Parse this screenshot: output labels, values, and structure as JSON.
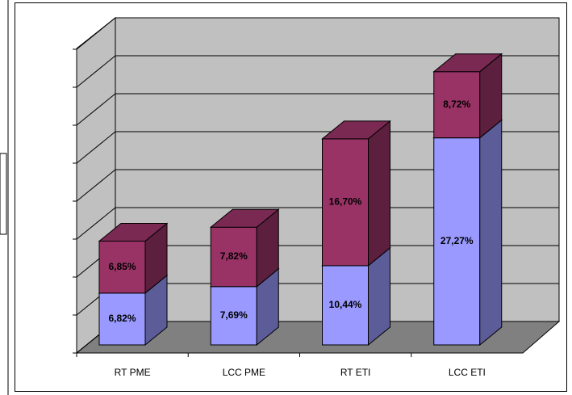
{
  "chart_data": {
    "type": "bar3d_stacked",
    "categories": [
      "RT PME",
      "LCC PME",
      "RT ETI",
      "LCC ETI"
    ],
    "series": [
      {
        "color": "#9999ff",
        "values": [
          6.82,
          7.69,
          10.44,
          27.27
        ],
        "value_labels": [
          "6,82%",
          "7,69%",
          "10,44%",
          "27,27%"
        ]
      },
      {
        "color": "#993366",
        "values": [
          6.85,
          7.82,
          16.7,
          8.72
        ],
        "value_labels": [
          "6,85%",
          "7,82%",
          "16,70%",
          "8,72%"
        ]
      }
    ],
    "ylim": [
      0,
      40
    ],
    "yticks": [
      0,
      5,
      10,
      15,
      20,
      25,
      30,
      35,
      40
    ],
    "grid": true
  }
}
